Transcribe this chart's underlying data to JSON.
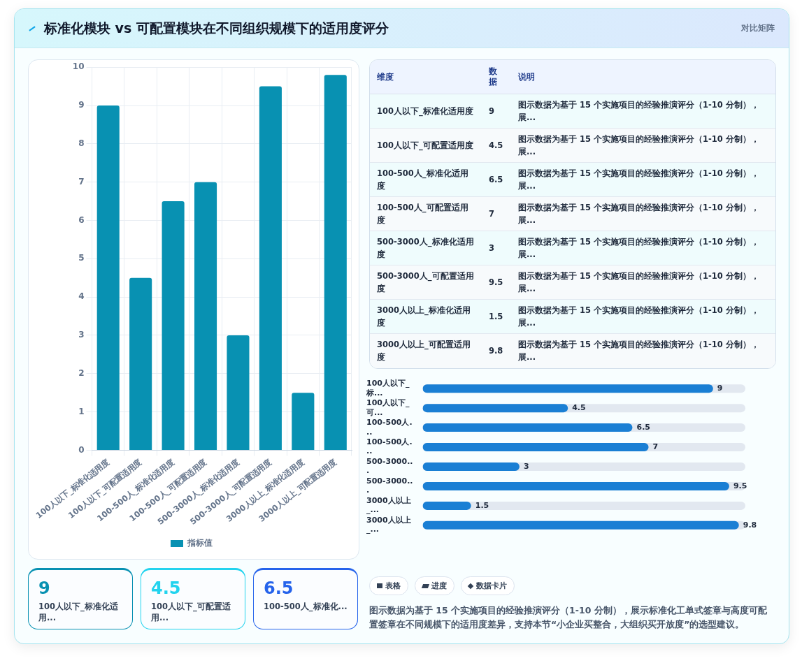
{
  "chart_data": [
    {
      "type": "bar",
      "categories": [
        "100人以下_标准化适用度",
        "100人以下_可配置适用度",
        "100-500人_标准化适用度",
        "100-500人_可配置适用度",
        "500-3000人_标准化适用度",
        "500-3000人_可配置适用度",
        "3000人以上_标准化适用度",
        "3000人以上_可配置适用度"
      ],
      "series": [
        {
          "name": "指标值",
          "color": "#0891b2",
          "values": [
            9,
            4.5,
            6.5,
            7,
            3,
            9.5,
            1.5,
            9.8
          ]
        }
      ],
      "ylim": [
        0,
        10
      ],
      "yticks": [
        0,
        1,
        2,
        3,
        4,
        5,
        6,
        7,
        8,
        9,
        10
      ],
      "grid": true,
      "legend": "bottom"
    },
    {
      "type": "other",
      "categories": [
        "维度",
        "数据",
        "说明"
      ],
      "cell_labels": [
        [
          "100人以下_标准化适用度",
          "9",
          "图示数据为基于 15 个实施项目的经验推演评分（1-10 分制），展..."
        ],
        [
          "100人以下_可配置适用度",
          "4.5",
          "图示数据为基于 15 个实施项目的经验推演评分（1-10 分制），展..."
        ],
        [
          "100-500人_标准化适用度",
          "6.5",
          "图示数据为基于 15 个实施项目的经验推演评分（1-10 分制），展..."
        ],
        [
          "100-500人_可配置适用度",
          "7",
          "图示数据为基于 15 个实施项目的经验推演评分（1-10 分制），展..."
        ],
        [
          "500-3000人_标准化适用度",
          "3",
          "图示数据为基于 15 个实施项目的经验推演评分（1-10 分制），展..."
        ],
        [
          "500-3000人_可配置适用度",
          "9.5",
          "图示数据为基于 15 个实施项目的经验推演评分（1-10 分制），展..."
        ],
        [
          "3000人以上_标准化适用度",
          "1.5",
          "图示数据为基于 15 个实施项目的经验推演评分（1-10 分制），展..."
        ],
        [
          "3000人以上_可配置适用度",
          "9.8",
          "图示数据为基于 15 个实施项目的经验推演评分（1-10 分制），展..."
        ]
      ]
    },
    {
      "type": "bar",
      "orientation": "horizontal",
      "categories": [
        "100人以下_标...",
        "100人以下_可...",
        "100-500人...",
        "100-500人...",
        "500-3000...",
        "500-3000...",
        "3000人以上_...",
        "3000人以上_..."
      ],
      "values": [
        9,
        4.5,
        6.5,
        7,
        3,
        9.5,
        1.5,
        9.8
      ],
      "color": "#1a7fd4",
      "xlim": [
        0,
        10
      ],
      "tick_labels": "y",
      "data_labels": true
    },
    {
      "type": "other",
      "categories": [
        "100人以下_标准化适用...",
        "100人以下_可配置适用...",
        "100-500人_标准化..."
      ],
      "values": [
        9,
        4.5,
        6.5
      ],
      "colors": [
        "#0891b2",
        "#22d3ee",
        "#2563eb"
      ],
      "data_labels": true
    },
    {
      "type": "other",
      "categories": [
        "表格",
        "进度",
        "数据卡片"
      ],
      "annotations": [
        "图示数据为基于 15 个实施项目的经验推演评分（1-10 分制），展示标准化工单式签章与高度可配置签章在不同规模下的适用度差异，支持本节“小企业买整合，大组织买开放度”的选型建议。"
      ]
    },
    {
      "type": "other",
      "title": "标准化模块 vs 可配置模块在不同组织规模下的适用度评分",
      "subtitle": "对比矩阵"
    }
  ]
}
